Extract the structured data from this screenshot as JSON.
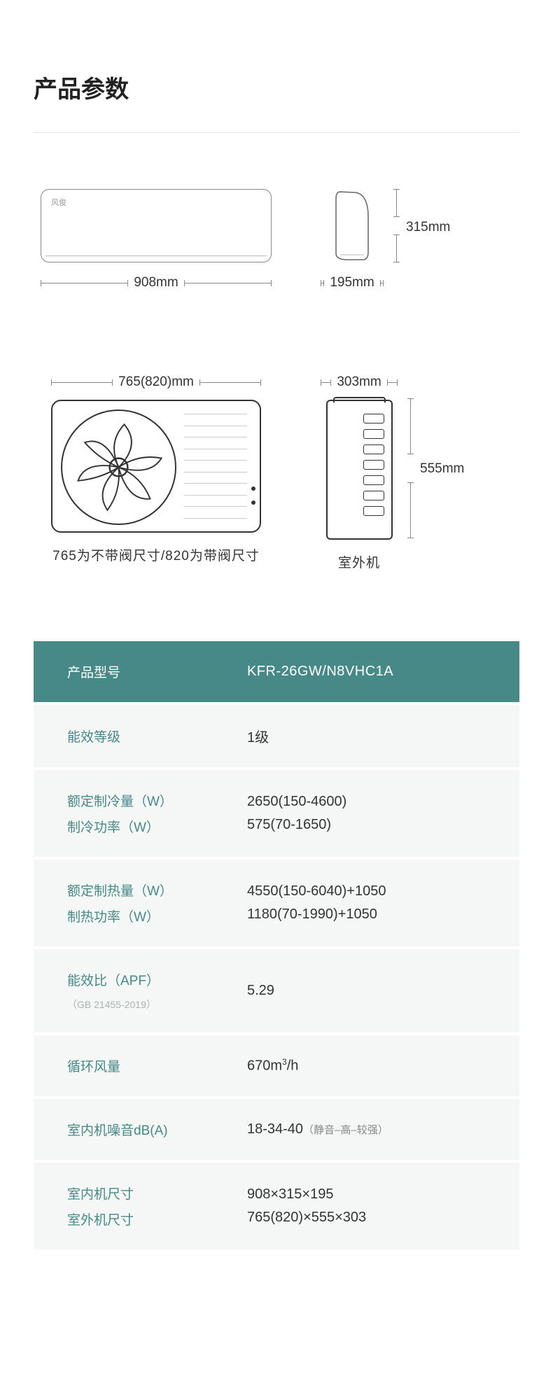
{
  "title": "产品参数",
  "diagrams": {
    "indoor_front": {
      "width_label": "908mm",
      "brand": "风俊"
    },
    "indoor_side": {
      "width_label": "195mm",
      "height_label": "315mm"
    },
    "outdoor_front": {
      "width_label": "765(820)mm",
      "caption": "765为不带阀尺寸/820为带阀尺寸"
    },
    "outdoor_side": {
      "width_label": "303mm",
      "height_label": "555mm",
      "caption": "室外机"
    }
  },
  "specs": [
    {
      "kind": "header",
      "labels": [
        "产品型号"
      ],
      "values": [
        "KFR-26GW/N8VHC1A"
      ]
    },
    {
      "kind": "body",
      "labels": [
        "能效等级"
      ],
      "values": [
        "1级"
      ]
    },
    {
      "kind": "body",
      "labels": [
        "额定制冷量（W）",
        "制冷功率（W）"
      ],
      "values": [
        "2650(150-4600)",
        "575(70-1650)"
      ]
    },
    {
      "kind": "body",
      "labels": [
        "额定制热量（W）",
        "制热功率（W）"
      ],
      "values": [
        "4550(150-6040)+1050",
        "1180(70-1990)+1050"
      ]
    },
    {
      "kind": "body",
      "labels": [
        "能效比（APF）"
      ],
      "sublabel": "（GB 21455-2019）",
      "values": [
        "5.29"
      ]
    },
    {
      "kind": "body",
      "labels": [
        "循环风量"
      ],
      "values_html": [
        "670m<sup>3</sup>/h"
      ]
    },
    {
      "kind": "body",
      "labels": [
        "室内机噪音dB(A)"
      ],
      "values_html": [
        "18-34-40<span class=\"note\">（静音–高–较强）</span>"
      ]
    },
    {
      "kind": "body",
      "labels": [
        "室内机尺寸",
        "室外机尺寸"
      ],
      "values": [
        "908×315×195",
        "765(820)×555×303"
      ]
    }
  ],
  "colors": {
    "accent": "#468986",
    "row_bg": "#f5f6f6",
    "text": "#333333",
    "muted": "#a8b5b3"
  }
}
